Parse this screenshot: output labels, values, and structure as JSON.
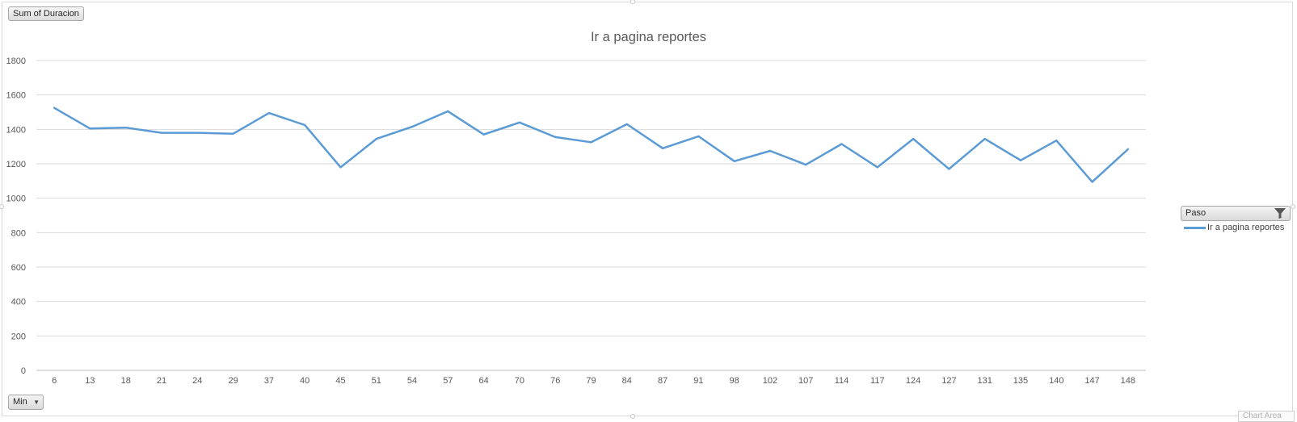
{
  "value_field_button": "Sum of Duracion",
  "axis_field_button": "Min",
  "legend_field_button": "Paso",
  "chart_area_tooltip": "Chart Area",
  "chart_data": {
    "type": "line",
    "title": "Ir a pagina reportes",
    "xlabel": "",
    "ylabel": "",
    "ylim": [
      0,
      1800
    ],
    "yticks": [
      0,
      200,
      400,
      600,
      800,
      1000,
      1200,
      1400,
      1600,
      1800
    ],
    "grid": true,
    "legend_position": "right",
    "categories": [
      "6",
      "13",
      "18",
      "21",
      "24",
      "29",
      "37",
      "40",
      "45",
      "51",
      "54",
      "57",
      "64",
      "70",
      "76",
      "79",
      "84",
      "87",
      "91",
      "98",
      "102",
      "107",
      "114",
      "117",
      "124",
      "127",
      "131",
      "135",
      "140",
      "147",
      "148"
    ],
    "series": [
      {
        "name": "Ir a pagina reportes",
        "color": "#5b9bd5",
        "values": [
          1525,
          1405,
          1410,
          1380,
          1380,
          1375,
          1495,
          1425,
          1180,
          1345,
          1415,
          1505,
          1370,
          1440,
          1355,
          1325,
          1430,
          1290,
          1360,
          1215,
          1275,
          1195,
          1315,
          1180,
          1345,
          1170,
          1345,
          1220,
          1335,
          1095,
          1285
        ]
      }
    ]
  }
}
